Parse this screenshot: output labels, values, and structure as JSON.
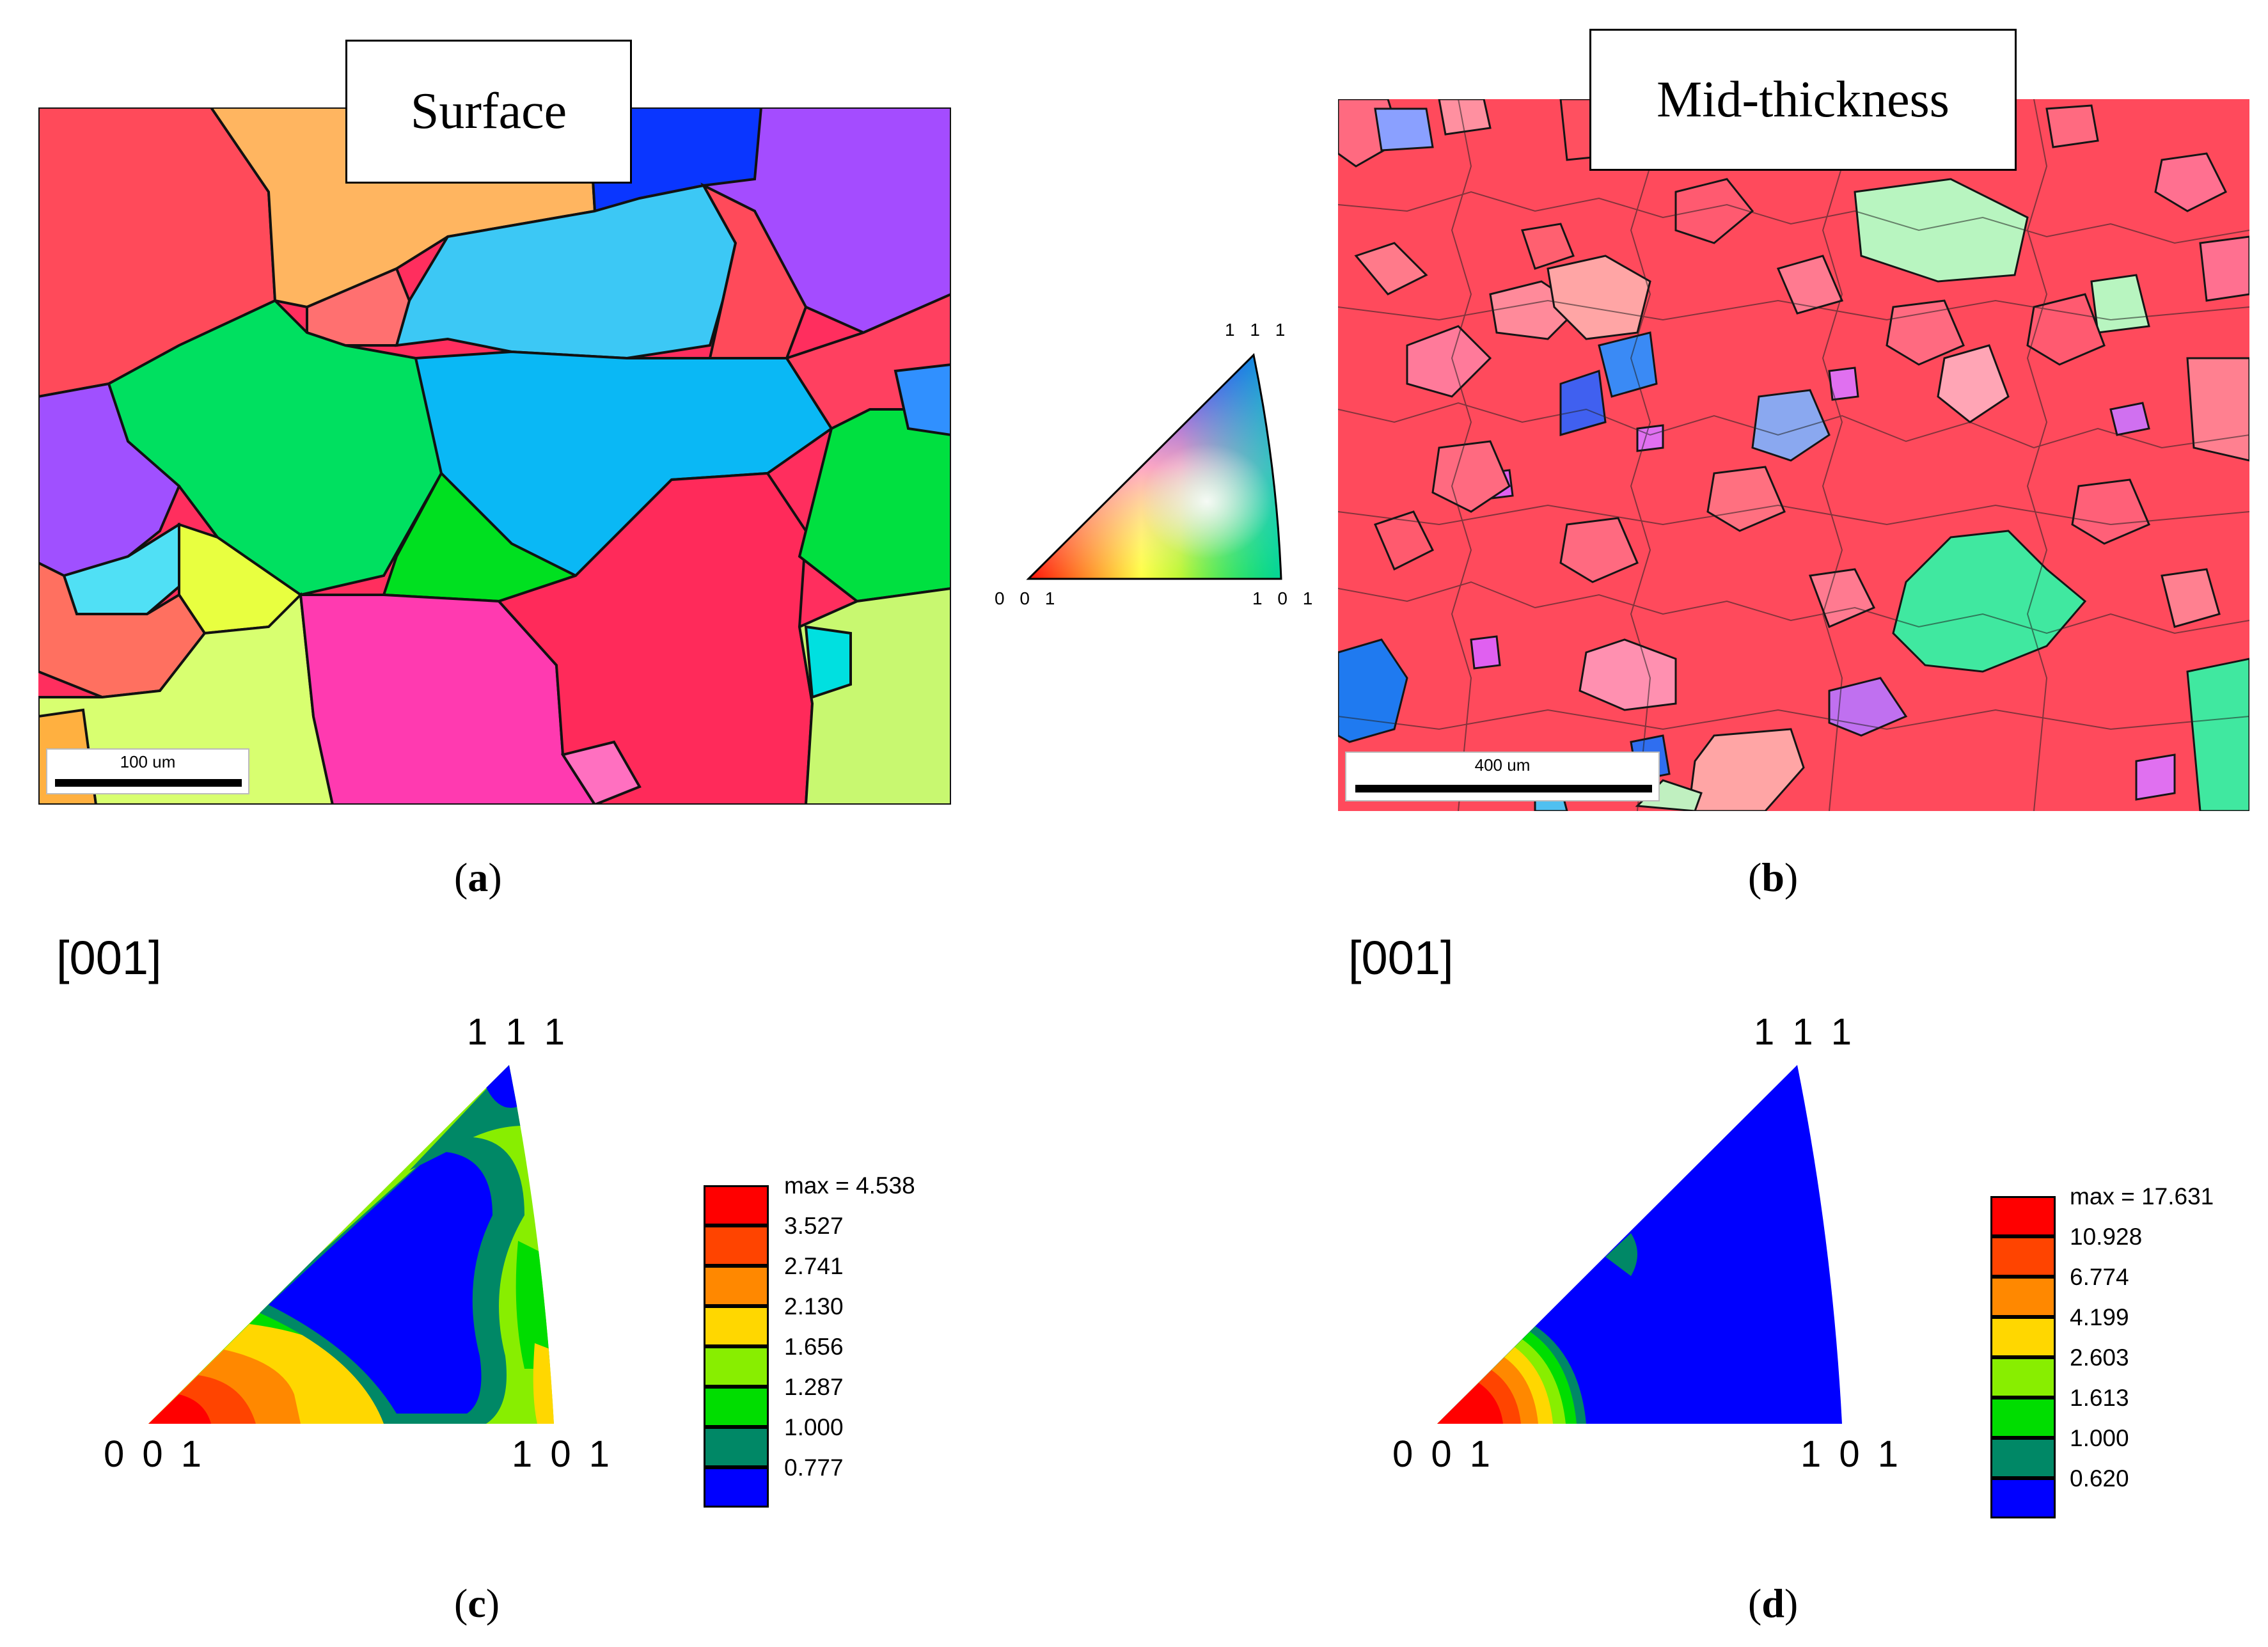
{
  "maps": {
    "surface": {
      "title": "Surface",
      "scale_label": "100 um",
      "panel": "a"
    },
    "mid": {
      "title": "Mid-thickness",
      "scale_label": "400 um",
      "panel": "b"
    }
  },
  "color_key": {
    "top": "1 1 1",
    "left": "0 0 1",
    "right": "1 0 1"
  },
  "ipf_c": {
    "panel": "c",
    "direction": "[001]",
    "corner_top": "1 1 1",
    "corner_left": "0 0 1",
    "corner_right": "1 0 1",
    "legend": [
      "max = 4.538",
      "3.527",
      "2.741",
      "2.130",
      "1.656",
      "1.287",
      "1.000",
      "0.777"
    ]
  },
  "ipf_d": {
    "panel": "d",
    "direction": "[001]",
    "corner_top": "1 1 1",
    "corner_left": "0 0 1",
    "corner_right": "1 0 1",
    "legend": [
      "max = 17.631",
      "10.928",
      "6.774",
      "4.199",
      "2.603",
      "1.613",
      "1.000",
      "0.620"
    ]
  },
  "legend_colors": [
    "#ff0000",
    "#ff4400",
    "#ff8800",
    "#ffd700",
    "#88ee00",
    "#00dd00",
    "#008866",
    "#0000ff"
  ],
  "grain_colors": {
    "red": "#ff2e5e",
    "salmon": "#ff6a6a",
    "orange": "#ffb060",
    "blue": "#1030ff",
    "sky": "#30b8f0",
    "cyan": "#00e5ff",
    "green": "#00e060",
    "lime": "#c8f080",
    "violet": "#a040ff",
    "magenta": "#ff40c0",
    "yellow": "#e8ff40"
  }
}
